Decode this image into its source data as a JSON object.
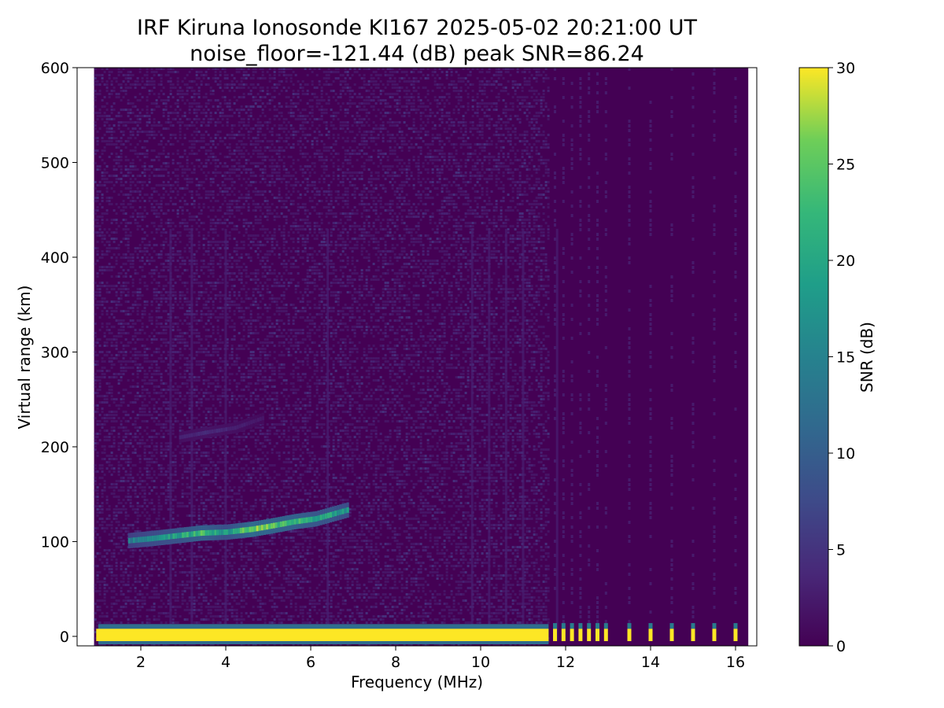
{
  "chart_data": {
    "type": "heatmap",
    "title_line1": "IRF Kiruna Ionosonde KI167 2025-05-02 20:21:00  UT",
    "title_line2": "noise_floor=-121.44 (dB) peak SNR=86.24",
    "xlabel": "Frequency (MHz)",
    "ylabel": "Virtual range (km)",
    "xlim": [
      0.5,
      16.5
    ],
    "ylim": [
      -10,
      600
    ],
    "xticks": [
      2,
      4,
      6,
      8,
      10,
      12,
      14,
      16
    ],
    "yticks": [
      0,
      100,
      200,
      300,
      400,
      500,
      600
    ],
    "colorbar": {
      "label": "SNR (dB)",
      "range": [
        0,
        30
      ],
      "ticks": [
        0,
        5,
        10,
        15,
        20,
        25,
        30
      ],
      "colormap": "viridis"
    },
    "data_extent_mhz": [
      0.9,
      16.3
    ],
    "ground_echo": {
      "virtual_range_km": [
        -5,
        8
      ],
      "snr_db": 30,
      "continuous_until_mhz": 11.6,
      "discrete_channels_mhz": [
        11.75,
        11.95,
        12.15,
        12.35,
        12.55,
        12.75,
        12.95,
        13.5,
        14.0,
        14.5,
        15.0,
        15.5,
        16.0
      ]
    },
    "e_layer_trace": {
      "frequency_mhz": [
        1.7,
        2.2,
        2.8,
        3.4,
        4.0,
        4.6,
        5.0,
        5.6,
        6.1,
        6.5,
        6.9
      ],
      "virtual_range_km": [
        101,
        103,
        106,
        109,
        110,
        113,
        116,
        121,
        124,
        129,
        134
      ],
      "snr_db": [
        14,
        17,
        19,
        23,
        18,
        26,
        24,
        23,
        20,
        20,
        17
      ]
    },
    "faint_upper_trace": {
      "frequency_mhz": [
        2.9,
        3.5,
        4.2,
        4.9
      ],
      "virtual_range_km": [
        210,
        215,
        220,
        231
      ],
      "snr_db": [
        3,
        4,
        3,
        2
      ]
    },
    "interference_lines_mhz": [
      2.7,
      3.2,
      4.0,
      6.4,
      9.8,
      10.2,
      10.6,
      11.0,
      11.8
    ]
  },
  "colors": {
    "background": "#ffffff",
    "noise_base": "#440154"
  }
}
